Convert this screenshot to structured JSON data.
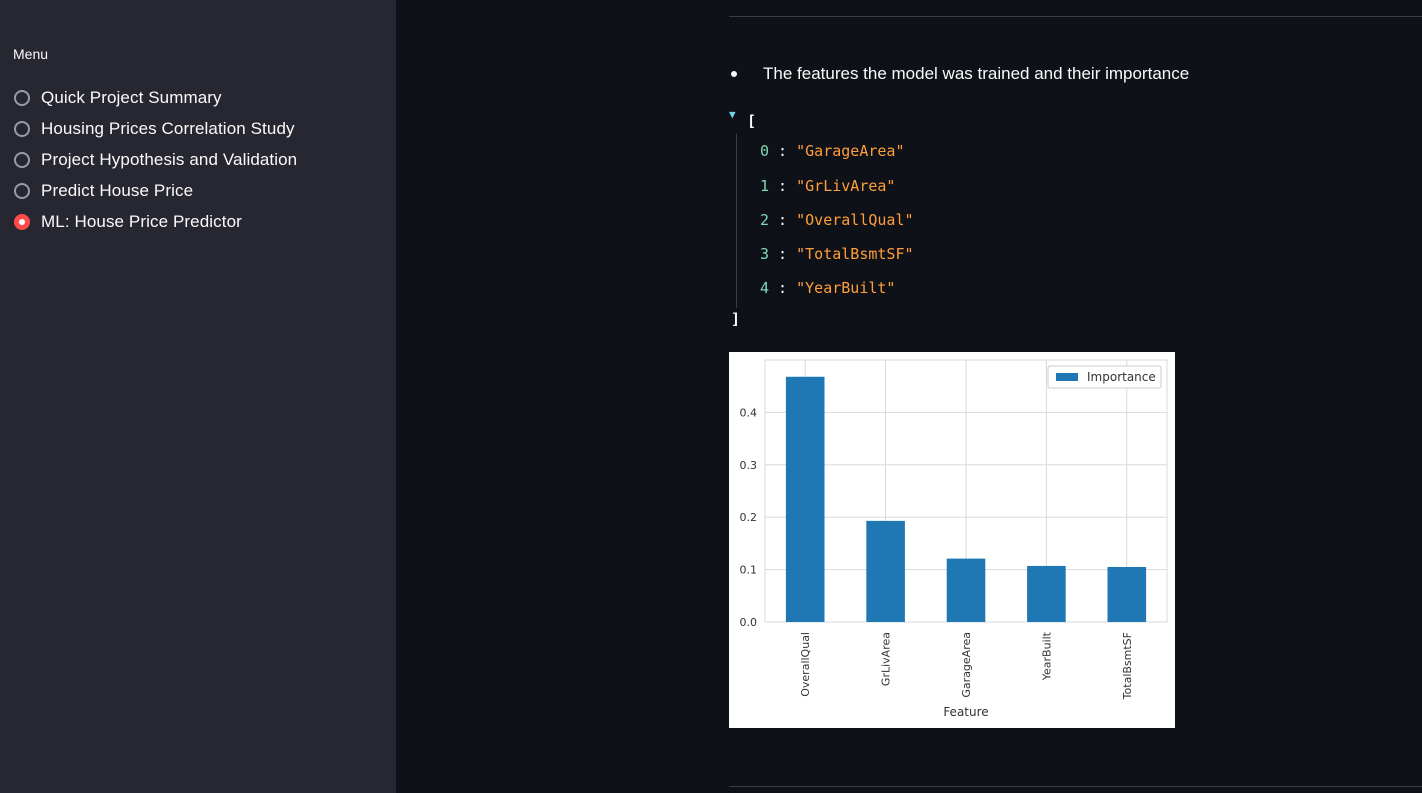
{
  "sidebar": {
    "menu_title": "Menu",
    "items": [
      {
        "label": "Quick Project Summary",
        "selected": false
      },
      {
        "label": "Housing Prices Correlation Study",
        "selected": false
      },
      {
        "label": "Project Hypothesis and Validation",
        "selected": false
      },
      {
        "label": "Predict House Price",
        "selected": false
      },
      {
        "label": "ML: House Price Predictor",
        "selected": true
      }
    ]
  },
  "main": {
    "bullet_text": "The features the model was trained and their importance",
    "json_view": {
      "open_bracket": "[",
      "close_bracket": "]",
      "items": [
        {
          "index": "0",
          "value": "\"GarageArea\""
        },
        {
          "index": "1",
          "value": "\"GrLivArea\""
        },
        {
          "index": "2",
          "value": "\"OverallQual\""
        },
        {
          "index": "3",
          "value": "\"TotalBsmtSF\""
        },
        {
          "index": "4",
          "value": "\"YearBuilt\""
        }
      ]
    }
  },
  "colors": {
    "accent": "#ff4b4b",
    "bar": "#1f77b4"
  },
  "chart_data": {
    "type": "bar",
    "categories": [
      "OverallQual",
      "GrLivArea",
      "GarageArea",
      "YearBuilt",
      "TotalBsmtSF"
    ],
    "series": [
      {
        "name": "Importance",
        "values": [
          0.468,
          0.193,
          0.121,
          0.107,
          0.105
        ]
      }
    ],
    "xlabel": "Feature",
    "ylabel": "",
    "ylim": [
      0,
      0.5
    ],
    "yticks": [
      "0.0",
      "0.1",
      "0.2",
      "0.3",
      "0.4"
    ],
    "grid": true,
    "legend": "top-right"
  }
}
